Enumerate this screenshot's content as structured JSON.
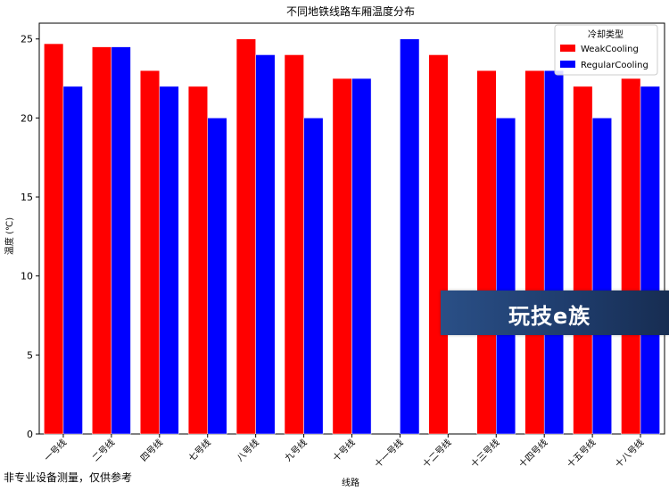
{
  "chart_data": {
    "type": "bar",
    "title": "不同地铁线路车厢温度分布",
    "xlabel": "线路",
    "ylabel": "温度 (℃)",
    "ylim": [
      0,
      26
    ],
    "yticks": [
      0,
      5,
      10,
      15,
      20,
      25
    ],
    "grid": false,
    "legend_title": "冷却类型",
    "legend_position": "top-right",
    "categories": [
      "一号线",
      "二号线",
      "四号线",
      "七号线",
      "八号线",
      "九号线",
      "十号线",
      "十一号线",
      "十二号线",
      "十三号线",
      "十四号线",
      "十五号线",
      "十八号线"
    ],
    "series": [
      {
        "name": "WeakCooling",
        "color": "#ff0000",
        "values": [
          24.7,
          24.5,
          23,
          22,
          25,
          24,
          22.5,
          null,
          24,
          23,
          23,
          22,
          22.5
        ]
      },
      {
        "name": "RegularCooling",
        "color": "#0000ff",
        "values": [
          22,
          24.5,
          22,
          20,
          24,
          20,
          22.5,
          25,
          null,
          20,
          23,
          20,
          22
        ]
      }
    ]
  },
  "footnote": "非专业设备测量，仅供参考",
  "watermark_text": "玩技e族"
}
